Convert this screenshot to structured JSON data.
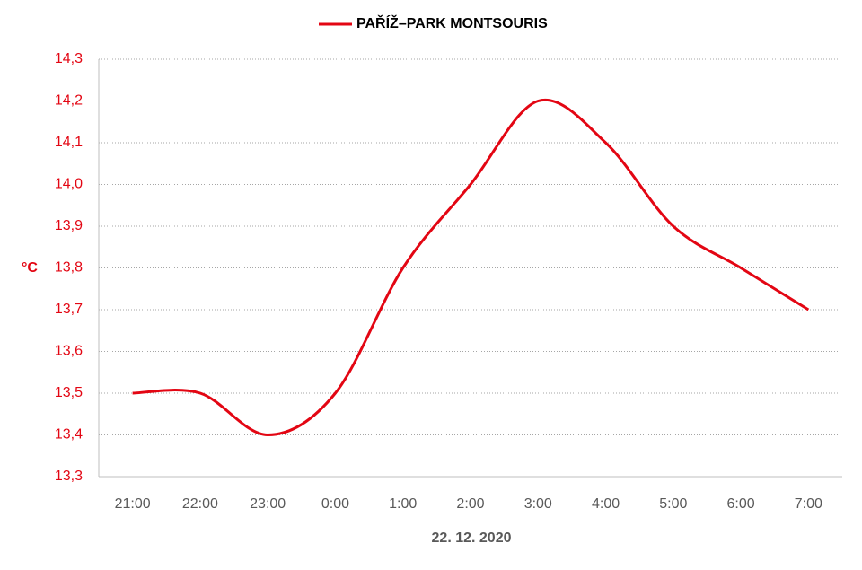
{
  "chart_data": {
    "type": "line",
    "title": "22. 12. 2020",
    "y_label": "°C",
    "categories": [
      "21:00",
      "22:00",
      "23:00",
      "0:00",
      "1:00",
      "2:00",
      "3:00",
      "4:00",
      "5:00",
      "6:00",
      "7:00"
    ],
    "series": [
      {
        "name": "PAŘÍŽ–PARK MONTSOURIS",
        "color": "#e30613",
        "values": [
          13.5,
          13.5,
          13.4,
          13.5,
          13.8,
          14.0,
          14.2,
          14.1,
          13.9,
          13.8,
          13.7
        ]
      }
    ],
    "ylim": [
      13.3,
      14.3
    ],
    "yticks": [
      {
        "value": 13.3,
        "label": "13,3"
      },
      {
        "value": 13.4,
        "label": "13,4"
      },
      {
        "value": 13.5,
        "label": "13,5"
      },
      {
        "value": 13.6,
        "label": "13,6"
      },
      {
        "value": 13.7,
        "label": "13,7"
      },
      {
        "value": 13.8,
        "label": "13,8"
      },
      {
        "value": 13.9,
        "label": "13,9"
      },
      {
        "value": 14.0,
        "label": "14,0"
      },
      {
        "value": 14.1,
        "label": "14,1"
      },
      {
        "value": 14.2,
        "label": "14,2"
      },
      {
        "value": 14.3,
        "label": "14,3"
      }
    ],
    "grid": true,
    "smooth": true,
    "legend": "top"
  }
}
